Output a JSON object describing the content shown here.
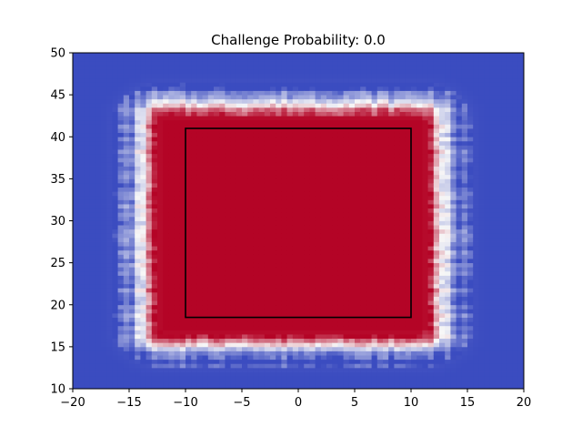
{
  "chart_data": {
    "type": "heatmap",
    "title": "Challenge Probability: 0.0",
    "xlabel": "",
    "ylabel": "",
    "xlim": [
      -20,
      20
    ],
    "ylim": [
      10,
      50
    ],
    "x_ticks": [
      -20,
      -15,
      -10,
      -5,
      0,
      5,
      10,
      15,
      20
    ],
    "y_ticks": [
      10,
      15,
      20,
      25,
      30,
      35,
      40,
      45,
      50
    ],
    "x_tick_labels": [
      "−20",
      "−15",
      "−10",
      "−5",
      "0",
      "5",
      "10",
      "15",
      "20"
    ],
    "y_tick_labels": [
      "10",
      "15",
      "20",
      "25",
      "30",
      "35",
      "40",
      "45",
      "50"
    ],
    "colormap": "coolwarm",
    "colormap_colors": [
      "#3b4cc0",
      "#f7f7f7",
      "#b40426"
    ],
    "value_range": [
      0,
      1
    ],
    "grid": false,
    "field": {
      "center_x": -0.5,
      "center_y": 29.5,
      "half_width_x": 11.5,
      "half_width_y": 12.5,
      "falloff": 2.2,
      "description_of_values": "probability ~1 inside center, decaying to ~0 outside"
    },
    "strike_zone": {
      "x_min": -10,
      "x_max": 10,
      "y_min": 18.5,
      "y_max": 41,
      "color": "#000000"
    }
  }
}
